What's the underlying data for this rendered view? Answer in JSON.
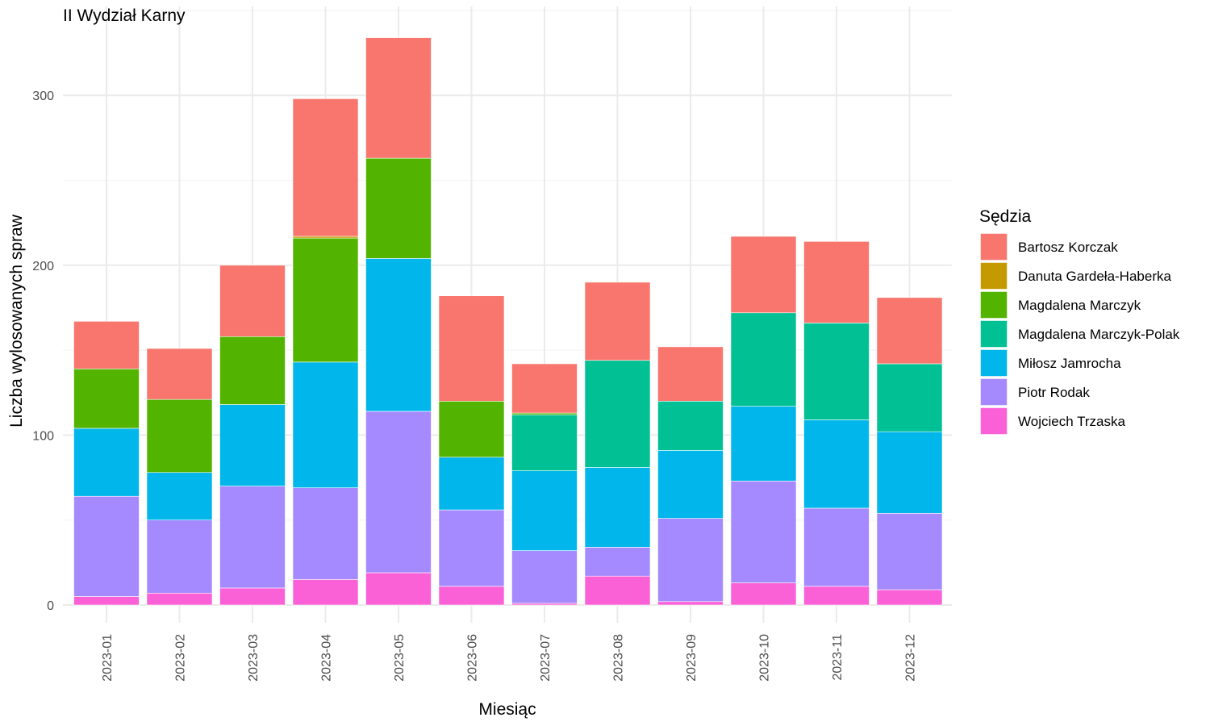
{
  "chart_data": {
    "type": "bar",
    "stacked": true,
    "title": "II Wydział Karny",
    "xlabel": "Miesiąc",
    "ylabel": "Liczba wylosowanych spraw",
    "ylim": [
      0,
      335
    ],
    "yticks": [
      0,
      100,
      200,
      300
    ],
    "grid": true,
    "legend_title": "Sędzia",
    "legend_position": "right",
    "categories": [
      "2023-01",
      "2023-02",
      "2023-03",
      "2023-04",
      "2023-05",
      "2023-06",
      "2023-07",
      "2023-08",
      "2023-09",
      "2023-10",
      "2023-11",
      "2023-12"
    ],
    "series": [
      {
        "name": "Bartosz Korczak",
        "color": "#F8766D",
        "values": [
          28,
          30,
          42,
          81,
          71,
          62,
          29,
          46,
          32,
          45,
          48,
          39
        ]
      },
      {
        "name": "Danuta Gardeła-Haberka",
        "color": "#C49A00",
        "values": [
          0,
          0,
          0,
          1,
          0,
          0,
          0,
          0,
          0,
          0,
          0,
          0
        ]
      },
      {
        "name": "Magdalena Marczyk",
        "color": "#53B400",
        "values": [
          35,
          43,
          40,
          73,
          59,
          33,
          1,
          0,
          0,
          0,
          0,
          0
        ]
      },
      {
        "name": "Magdalena Marczyk-Polak",
        "color": "#00C094",
        "values": [
          0,
          0,
          0,
          0,
          0,
          0,
          33,
          63,
          29,
          55,
          57,
          40
        ]
      },
      {
        "name": "Miłosz Jamrocha",
        "color": "#00B6EB",
        "values": [
          40,
          28,
          48,
          74,
          90,
          31,
          47,
          47,
          40,
          44,
          52,
          48
        ]
      },
      {
        "name": "Piotr Rodak",
        "color": "#A58AFF",
        "values": [
          59,
          43,
          60,
          54,
          95,
          45,
          31,
          17,
          49,
          60,
          46,
          45
        ]
      },
      {
        "name": "Wojciech Trzaska",
        "color": "#FB61D7",
        "values": [
          5,
          7,
          10,
          15,
          19,
          11,
          1,
          17,
          2,
          13,
          11,
          9
        ]
      }
    ]
  }
}
